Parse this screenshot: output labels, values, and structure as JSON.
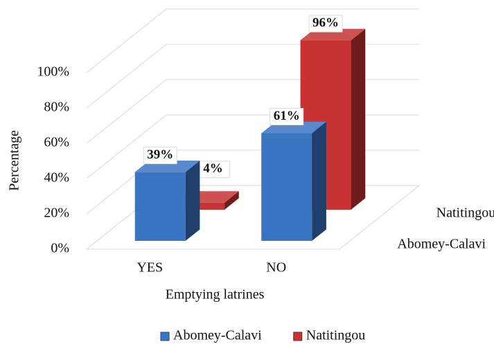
{
  "chart_data": {
    "type": "bar3d",
    "x_label": "Emptying latrines",
    "y_label": "Percentage",
    "categories": [
      "YES",
      "NO"
    ],
    "series": [
      {
        "name": "Abomey-Calavi",
        "color": "#3a75c4",
        "values": [
          39,
          61
        ],
        "value_labels": [
          "39%",
          "61%"
        ]
      },
      {
        "name": "Natitingou",
        "color": "#c83232",
        "values": [
          4,
          96
        ],
        "value_labels": [
          "4%",
          "96%"
        ]
      }
    ],
    "ylim": [
      0,
      100
    ],
    "yticks": [
      {
        "value": 0,
        "label": "0%"
      },
      {
        "value": 20,
        "label": "20%"
      },
      {
        "value": 40,
        "label": "40%"
      },
      {
        "value": 60,
        "label": "60%"
      },
      {
        "value": 80,
        "label": "80%"
      },
      {
        "value": 100,
        "label": "100%"
      }
    ],
    "grid": true,
    "legend": "bottom"
  }
}
